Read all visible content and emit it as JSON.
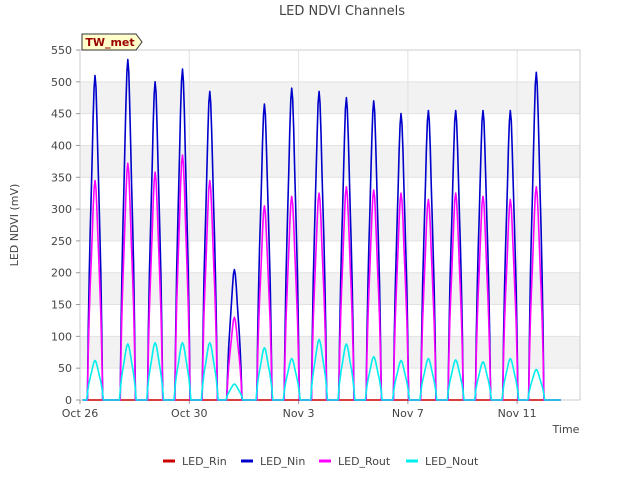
{
  "chart_data": {
    "type": "line",
    "title": "LED NDVI Channels",
    "xlabel": "Time",
    "ylabel": "LED NDVI (mV)",
    "ylim": [
      0,
      550
    ],
    "yticks": [
      0,
      50,
      100,
      150,
      200,
      250,
      300,
      350,
      400,
      450,
      500,
      550
    ],
    "xlim": [
      0,
      18.3
    ],
    "xticks": [
      {
        "x": 0,
        "label": "Oct 26"
      },
      {
        "x": 4,
        "label": "Oct 30"
      },
      {
        "x": 8,
        "label": "Nov 3"
      },
      {
        "x": 12,
        "label": "Nov 7"
      },
      {
        "x": 16,
        "label": "Nov 11"
      }
    ],
    "grid": true,
    "legend_position": "bottom",
    "annotation": "TW_met",
    "series": [
      {
        "name": "LED_Rin",
        "color": "#cc0000",
        "peaks": [
          0,
          0,
          0,
          0,
          0,
          0,
          0,
          0,
          0,
          0,
          0,
          0,
          0,
          0,
          0,
          0,
          0,
          0,
          0
        ]
      },
      {
        "name": "LED_Nin",
        "color": "#0000cc",
        "peaks": [
          510,
          535,
          500,
          520,
          485,
          205,
          465,
          490,
          485,
          475,
          470,
          450,
          455,
          455,
          455,
          455,
          515,
          0,
          0
        ]
      },
      {
        "name": "LED_Rout",
        "color": "#ff00ff",
        "peaks": [
          345,
          372,
          358,
          385,
          345,
          130,
          305,
          320,
          325,
          335,
          330,
          325,
          315,
          325,
          320,
          315,
          335,
          0,
          0
        ]
      },
      {
        "name": "LED_Nout",
        "color": "#00eeee",
        "peaks": [
          62,
          88,
          90,
          90,
          90,
          25,
          82,
          65,
          95,
          88,
          68,
          62,
          65,
          63,
          60,
          65,
          48,
          0,
          0
        ]
      }
    ],
    "day_offsets": [
      0.55,
      1.75,
      2.75,
      3.75,
      4.75,
      5.65,
      6.75,
      7.75,
      8.75,
      9.75,
      10.75,
      11.75,
      12.75,
      13.75,
      14.75,
      15.75,
      16.7
    ]
  },
  "legend": {
    "items": [
      "LED_Rin",
      "LED_Nin",
      "LED_Rout",
      "LED_Nout"
    ]
  }
}
